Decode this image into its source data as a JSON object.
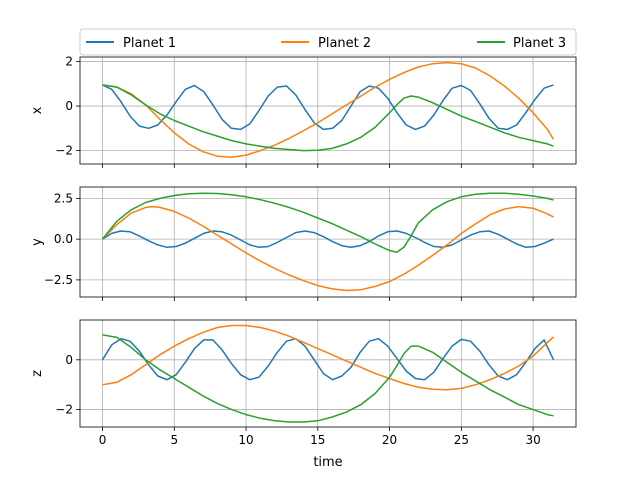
{
  "legend": {
    "items": [
      {
        "label": "Planet 1",
        "color": "#1f77b4"
      },
      {
        "label": "Planet 2",
        "color": "#ff7f0e"
      },
      {
        "label": "Planet 3",
        "color": "#2ca02c"
      }
    ]
  },
  "chart_data": [
    {
      "type": "line",
      "ylabel": "x",
      "xlabel": "",
      "xlim": [
        -1.57,
        32.99
      ],
      "ylim": [
        -2.6,
        2.2
      ],
      "yticks": [
        -2,
        0,
        2
      ],
      "ytick_labels": [
        "−2",
        "0",
        "2"
      ],
      "xticks": [
        0,
        5,
        10,
        15,
        20,
        25,
        30
      ],
      "grid": true,
      "legend": "top-center",
      "series": [
        {
          "name": "Planet 1",
          "color": "#1f77b4",
          "x": [
            0,
            0.64,
            1.28,
            1.92,
            2.56,
            3.21,
            3.85,
            4.49,
            5.13,
            5.77,
            6.41,
            7.05,
            7.69,
            8.33,
            8.98,
            9.62,
            10.26,
            10.9,
            11.54,
            12.18,
            12.82,
            13.46,
            14.1,
            14.75,
            15.39,
            16.03,
            16.67,
            17.31,
            17.95,
            18.59,
            19.23,
            19.87,
            20.52,
            21.16,
            21.8,
            22.44,
            23.08,
            23.72,
            24.36,
            25.0,
            25.64,
            26.29,
            26.93,
            27.57,
            28.21,
            28.85,
            29.49,
            30.13,
            30.77,
            31.42
          ],
          "values": [
            0.95,
            0.75,
            0.2,
            -0.45,
            -0.9,
            -1.0,
            -0.85,
            -0.4,
            0.2,
            0.75,
            0.92,
            0.65,
            0.05,
            -0.6,
            -1.0,
            -1.05,
            -0.8,
            -0.2,
            0.45,
            0.85,
            0.9,
            0.5,
            -0.15,
            -0.75,
            -1.05,
            -1.0,
            -0.65,
            0.0,
            0.65,
            0.9,
            0.8,
            0.35,
            -0.3,
            -0.85,
            -1.05,
            -0.9,
            -0.4,
            0.25,
            0.8,
            0.92,
            0.7,
            0.1,
            -0.55,
            -1.0,
            -1.05,
            -0.85,
            -0.3,
            0.3,
            0.8,
            0.95
          ]
        },
        {
          "name": "Planet 2",
          "color": "#ff7f0e",
          "x": [
            0,
            1,
            2,
            3,
            4,
            5,
            6,
            7,
            8,
            9,
            10,
            11,
            12,
            13,
            14,
            15,
            16,
            17,
            18,
            19,
            20,
            21,
            22,
            23,
            24,
            25,
            26,
            27,
            28,
            29,
            30,
            31,
            31.42
          ],
          "values": [
            0.95,
            0.85,
            0.55,
            0.05,
            -0.6,
            -1.2,
            -1.7,
            -2.05,
            -2.25,
            -2.3,
            -2.2,
            -2.0,
            -1.75,
            -1.45,
            -1.1,
            -0.75,
            -0.35,
            0.05,
            0.45,
            0.85,
            1.2,
            1.5,
            1.75,
            1.9,
            1.95,
            1.9,
            1.7,
            1.35,
            0.9,
            0.35,
            -0.3,
            -1.05,
            -1.5
          ]
        },
        {
          "name": "Planet 3",
          "color": "#2ca02c",
          "x": [
            0,
            1,
            2,
            3,
            4,
            5,
            6,
            7,
            8,
            9,
            10,
            11,
            12,
            13,
            14,
            15,
            16,
            17,
            18,
            19,
            20,
            20.5,
            21,
            21.5,
            22,
            23,
            24,
            25,
            26,
            27,
            28,
            29,
            30,
            31,
            31.42
          ],
          "values": [
            0.95,
            0.85,
            0.5,
            0.05,
            -0.35,
            -0.65,
            -0.9,
            -1.15,
            -1.35,
            -1.55,
            -1.7,
            -1.8,
            -1.9,
            -1.95,
            -2.0,
            -1.98,
            -1.9,
            -1.7,
            -1.4,
            -0.95,
            -0.3,
            0.05,
            0.35,
            0.45,
            0.4,
            0.15,
            -0.15,
            -0.45,
            -0.7,
            -0.95,
            -1.2,
            -1.4,
            -1.55,
            -1.7,
            -1.8
          ]
        }
      ]
    },
    {
      "type": "line",
      "ylabel": "y",
      "xlabel": "",
      "xlim": [
        -1.57,
        32.99
      ],
      "ylim": [
        -3.55,
        3.2
      ],
      "yticks": [
        -2.5,
        0,
        2.5
      ],
      "ytick_labels": [
        "−2.5",
        "0.0",
        "2.5"
      ],
      "xticks": [
        0,
        5,
        10,
        15,
        20,
        25,
        30
      ],
      "grid": true,
      "series": [
        {
          "name": "Planet 1",
          "color": "#1f77b4",
          "x": [
            0,
            0.64,
            1.28,
            1.92,
            2.56,
            3.21,
            3.85,
            4.49,
            5.13,
            5.77,
            6.41,
            7.05,
            7.69,
            8.33,
            8.98,
            9.62,
            10.26,
            10.9,
            11.54,
            12.18,
            12.82,
            13.46,
            14.1,
            14.75,
            15.39,
            16.03,
            16.67,
            17.31,
            17.95,
            18.59,
            19.23,
            19.87,
            20.52,
            21.16,
            21.8,
            22.44,
            23.08,
            23.72,
            24.36,
            25.0,
            25.64,
            26.29,
            26.93,
            27.57,
            28.21,
            28.85,
            29.49,
            30.13,
            30.77,
            31.42
          ],
          "values": [
            0.0,
            0.35,
            0.5,
            0.45,
            0.2,
            -0.1,
            -0.35,
            -0.5,
            -0.45,
            -0.25,
            0.05,
            0.35,
            0.5,
            0.45,
            0.25,
            -0.05,
            -0.35,
            -0.5,
            -0.45,
            -0.2,
            0.1,
            0.4,
            0.5,
            0.4,
            0.15,
            -0.15,
            -0.4,
            -0.5,
            -0.4,
            -0.15,
            0.2,
            0.45,
            0.5,
            0.35,
            0.1,
            -0.2,
            -0.45,
            -0.5,
            -0.35,
            -0.05,
            0.25,
            0.45,
            0.5,
            0.3,
            0.0,
            -0.3,
            -0.5,
            -0.45,
            -0.25,
            0.0
          ]
        },
        {
          "name": "Planet 2",
          "color": "#ff7f0e",
          "x": [
            0,
            1,
            2,
            3,
            3.5,
            4,
            5,
            6,
            7,
            8,
            9,
            10,
            11,
            12,
            13,
            14,
            15,
            16,
            17,
            18,
            19,
            20,
            21,
            22,
            23,
            24,
            25,
            26,
            27,
            28,
            29,
            30,
            31,
            31.42
          ],
          "values": [
            0.0,
            0.9,
            1.6,
            1.95,
            2.0,
            1.95,
            1.7,
            1.3,
            0.8,
            0.25,
            -0.3,
            -0.85,
            -1.35,
            -1.8,
            -2.2,
            -2.55,
            -2.85,
            -3.05,
            -3.15,
            -3.1,
            -2.9,
            -2.6,
            -2.15,
            -1.6,
            -1.0,
            -0.35,
            0.35,
            0.95,
            1.5,
            1.85,
            2.0,
            1.9,
            1.55,
            1.35
          ]
        },
        {
          "name": "Planet 3",
          "color": "#2ca02c",
          "x": [
            0,
            1,
            2,
            3,
            4,
            5,
            6,
            7,
            8,
            9,
            10,
            11,
            12,
            13,
            14,
            15,
            16,
            17,
            18,
            19,
            20,
            20.5,
            21,
            21.5,
            22,
            23,
            24,
            25,
            26,
            27,
            28,
            29,
            30,
            31,
            31.42
          ],
          "values": [
            0.0,
            1.1,
            1.8,
            2.25,
            2.5,
            2.68,
            2.78,
            2.82,
            2.8,
            2.72,
            2.6,
            2.42,
            2.2,
            1.95,
            1.65,
            1.3,
            0.95,
            0.55,
            0.15,
            -0.3,
            -0.7,
            -0.8,
            -0.5,
            0.2,
            1.0,
            1.8,
            2.3,
            2.6,
            2.75,
            2.82,
            2.82,
            2.75,
            2.65,
            2.5,
            2.4
          ]
        }
      ]
    },
    {
      "type": "line",
      "ylabel": "z",
      "xlabel": "time",
      "xlim": [
        -1.57,
        32.99
      ],
      "ylim": [
        -2.7,
        1.6
      ],
      "yticks": [
        -2,
        0
      ],
      "ytick_labels": [
        "−2",
        "0"
      ],
      "xticks": [
        0,
        5,
        10,
        15,
        20,
        25,
        30
      ],
      "xtick_labels": [
        "0",
        "5",
        "10",
        "15",
        "20",
        "25",
        "30"
      ],
      "grid": true,
      "series": [
        {
          "name": "Planet 1",
          "color": "#1f77b4",
          "x": [
            0,
            0.64,
            1.28,
            1.92,
            2.56,
            3.21,
            3.85,
            4.49,
            5.13,
            5.77,
            6.41,
            7.05,
            7.69,
            8.33,
            8.98,
            9.62,
            10.26,
            10.9,
            11.54,
            12.18,
            12.82,
            13.46,
            14.1,
            14.75,
            15.39,
            16.03,
            16.67,
            17.31,
            17.95,
            18.59,
            19.23,
            19.87,
            20.52,
            21.16,
            21.8,
            22.44,
            23.08,
            23.72,
            24.36,
            25.0,
            25.64,
            26.29,
            26.93,
            27.57,
            28.21,
            28.85,
            29.49,
            30.13,
            30.77,
            31.42
          ],
          "values": [
            0.0,
            0.6,
            0.85,
            0.75,
            0.35,
            -0.2,
            -0.65,
            -0.8,
            -0.6,
            -0.1,
            0.45,
            0.8,
            0.8,
            0.4,
            -0.15,
            -0.6,
            -0.8,
            -0.7,
            -0.25,
            0.3,
            0.75,
            0.85,
            0.55,
            0.0,
            -0.55,
            -0.8,
            -0.65,
            -0.3,
            0.3,
            0.75,
            0.85,
            0.55,
            0.05,
            -0.45,
            -0.75,
            -0.8,
            -0.5,
            0.05,
            0.55,
            0.82,
            0.75,
            0.35,
            -0.2,
            -0.65,
            -0.8,
            -0.6,
            -0.1,
            0.45,
            0.8,
            0.0
          ]
        },
        {
          "name": "Planet 2",
          "color": "#ff7f0e",
          "x": [
            0,
            1,
            2,
            3,
            4,
            5,
            6,
            7,
            8,
            9,
            10,
            11,
            12,
            13,
            14,
            15,
            16,
            17,
            18,
            19,
            20,
            21,
            22,
            23,
            24,
            25,
            26,
            27,
            28,
            29,
            30,
            31,
            31.42
          ],
          "values": [
            -1.0,
            -0.9,
            -0.6,
            -0.2,
            0.2,
            0.55,
            0.85,
            1.1,
            1.3,
            1.38,
            1.38,
            1.3,
            1.15,
            0.95,
            0.7,
            0.45,
            0.2,
            -0.05,
            -0.3,
            -0.55,
            -0.75,
            -0.95,
            -1.1,
            -1.18,
            -1.2,
            -1.15,
            -1.0,
            -0.8,
            -0.55,
            -0.25,
            0.15,
            0.7,
            0.92
          ]
        },
        {
          "name": "Planet 3",
          "color": "#2ca02c",
          "x": [
            0,
            1,
            2,
            3,
            4,
            5,
            6,
            7,
            8,
            9,
            10,
            11,
            12,
            13,
            14,
            15,
            16,
            17,
            18,
            19,
            20,
            20.5,
            21,
            21.5,
            22,
            23,
            24,
            25,
            26,
            27,
            28,
            29,
            30,
            31,
            31.42
          ],
          "values": [
            1.0,
            0.9,
            0.5,
            0.0,
            -0.4,
            -0.75,
            -1.1,
            -1.45,
            -1.75,
            -2.0,
            -2.2,
            -2.35,
            -2.45,
            -2.5,
            -2.5,
            -2.45,
            -2.3,
            -2.1,
            -1.8,
            -1.35,
            -0.7,
            -0.25,
            0.25,
            0.55,
            0.55,
            0.3,
            -0.1,
            -0.5,
            -0.85,
            -1.2,
            -1.5,
            -1.8,
            -2.0,
            -2.2,
            -2.25
          ]
        }
      ]
    }
  ]
}
